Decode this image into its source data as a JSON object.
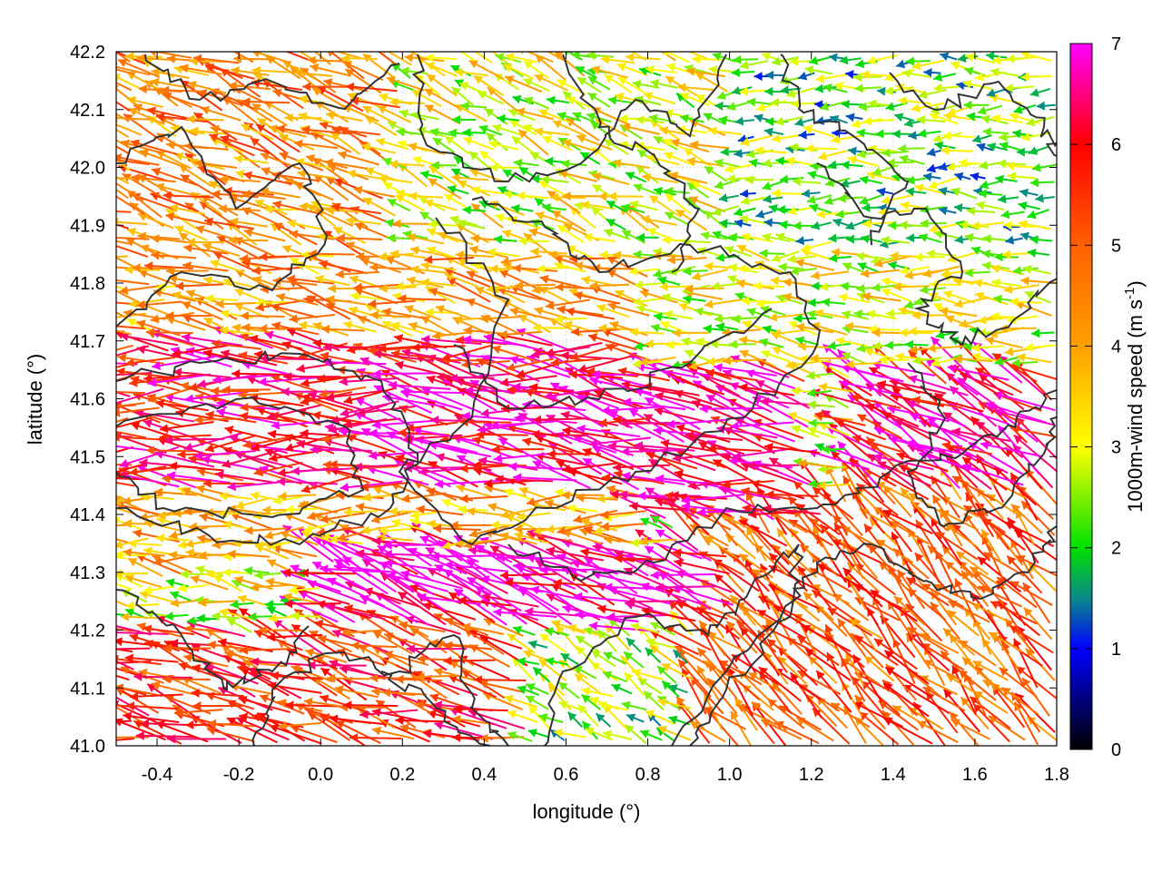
{
  "chart_data": {
    "type": "vector-field",
    "xlabel": "longitude (°)",
    "ylabel": "latitude (°)",
    "xlim": [
      -0.5,
      1.8
    ],
    "ylim": [
      41.0,
      42.2
    ],
    "x_ticks": [
      "-0.4",
      "-0.2",
      "0.0",
      "0.2",
      "0.4",
      "0.6",
      "0.8",
      "1.0",
      "1.2",
      "1.4",
      "1.6",
      "1.8"
    ],
    "x_tick_values": [
      -0.4,
      -0.2,
      0.0,
      0.2,
      0.4,
      0.6,
      0.8,
      1.0,
      1.2,
      1.4,
      1.6,
      1.8
    ],
    "y_ticks": [
      "41.0",
      "41.1",
      "41.2",
      "41.3",
      "41.4",
      "41.5",
      "41.6",
      "41.7",
      "41.8",
      "41.9",
      "42.0",
      "42.1",
      "42.2"
    ],
    "y_tick_values": [
      41.0,
      41.1,
      41.2,
      41.3,
      41.4,
      41.5,
      41.6,
      41.7,
      41.8,
      41.9,
      42.0,
      42.1,
      42.2
    ],
    "grid": true,
    "colorbar": {
      "label": "1000m-wind speed (m s",
      "label_sup": "-1",
      "label_end": ")",
      "range": [
        0,
        7
      ],
      "ticks": [
        "0",
        "1",
        "2",
        "3",
        "4",
        "5",
        "6",
        "7"
      ],
      "tick_values": [
        0,
        1,
        2,
        3,
        4,
        5,
        6,
        7
      ],
      "stops": [
        {
          "value": 0,
          "color": "#000000"
        },
        {
          "value": 1,
          "color": "#0000ff"
        },
        {
          "value": 1.5,
          "color": "#0a8a8a"
        },
        {
          "value": 2,
          "color": "#00e000"
        },
        {
          "value": 3,
          "color": "#ffff00"
        },
        {
          "value": 4,
          "color": "#ffa000"
        },
        {
          "value": 5,
          "color": "#ff6000"
        },
        {
          "value": 6,
          "color": "#ff0000"
        },
        {
          "value": 7,
          "color": "#ff00ff"
        }
      ]
    },
    "contour_color": "#333333",
    "wind_regions": [
      {
        "lon": [
          -0.5,
          1.0
        ],
        "lat": [
          41.85,
          42.2
        ],
        "speed": 3.0,
        "direction_deg": 160
      },
      {
        "lon": [
          1.0,
          1.8
        ],
        "lat": [
          41.85,
          42.2
        ],
        "speed": 2.2,
        "direction_deg": 180
      },
      {
        "lon": [
          -0.5,
          0.2
        ],
        "lat": [
          41.85,
          42.2
        ],
        "speed": 4.5,
        "direction_deg": 160
      },
      {
        "lon": [
          -0.5,
          0.8
        ],
        "lat": [
          41.7,
          41.85
        ],
        "speed": 4.2,
        "direction_deg": 170
      },
      {
        "lon": [
          0.8,
          1.8
        ],
        "lat": [
          41.65,
          41.85
        ],
        "speed": 3.0,
        "direction_deg": 175
      },
      {
        "lon": [
          -0.5,
          0.9
        ],
        "lat": [
          41.45,
          41.7
        ],
        "speed": 6.0,
        "direction_deg": 178
      },
      {
        "lon": [
          0.2,
          1.2
        ],
        "lat": [
          41.4,
          41.65
        ],
        "speed": 6.6,
        "direction_deg": 168
      },
      {
        "lon": [
          1.3,
          1.8
        ],
        "lat": [
          41.45,
          41.65
        ],
        "speed": 6.4,
        "direction_deg": 150
      },
      {
        "lon": [
          -0.5,
          0.8
        ],
        "lat": [
          41.3,
          41.45
        ],
        "speed": 4.0,
        "direction_deg": 175
      },
      {
        "lon": [
          0.0,
          1.0
        ],
        "lat": [
          41.2,
          41.35
        ],
        "speed": 6.8,
        "direction_deg": 162
      },
      {
        "lon": [
          0.9,
          1.8
        ],
        "lat": [
          41.0,
          41.45
        ],
        "speed": 5.0,
        "direction_deg": 135
      },
      {
        "lon": [
          -0.5,
          0.5
        ],
        "lat": [
          41.0,
          41.2
        ],
        "speed": 5.5,
        "direction_deg": 165
      },
      {
        "lon": [
          0.5,
          0.9
        ],
        "lat": [
          41.0,
          41.2
        ],
        "speed": 2.5,
        "direction_deg": 150
      }
    ]
  }
}
